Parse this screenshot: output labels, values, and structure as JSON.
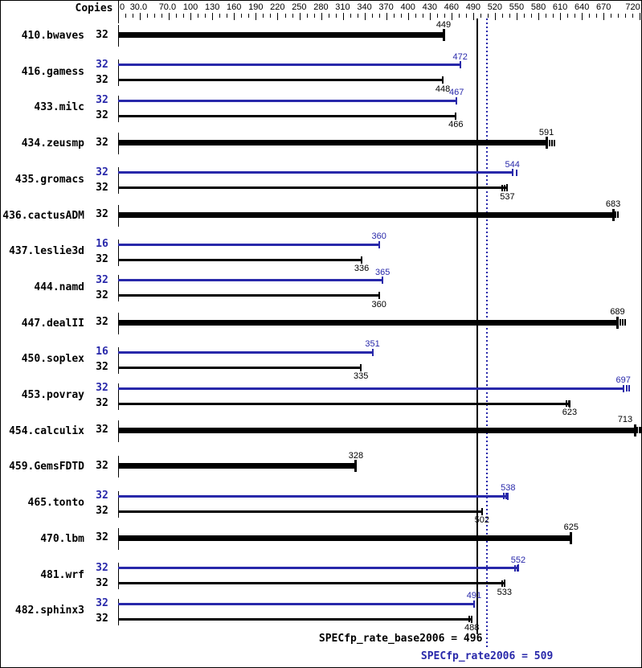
{
  "chart_data": {
    "type": "bar",
    "orientation": "horizontal",
    "copies_header": "Copies",
    "axis": {
      "min": 0,
      "max": 720,
      "minor_step": 10,
      "tick_labels": [
        "0",
        "30.0",
        "70.0",
        "100",
        "130",
        "160",
        "190",
        "220",
        "250",
        "280",
        "310",
        "340",
        "370",
        "400",
        "430",
        "460",
        "490",
        "520",
        "550",
        "580",
        "610",
        "640",
        "670",
        "720"
      ],
      "tick_values": [
        0,
        30,
        70,
        100,
        130,
        160,
        190,
        220,
        250,
        280,
        310,
        340,
        370,
        400,
        430,
        460,
        490,
        520,
        550,
        580,
        610,
        640,
        670,
        720
      ]
    },
    "colors": {
      "peak": "#2828aa",
      "base": "#000000"
    },
    "benchmarks": [
      {
        "name": "410.bwaves",
        "bars": [
          {
            "series": "base",
            "copies": "32",
            "value": 449,
            "bold": true,
            "marks": []
          }
        ]
      },
      {
        "name": "416.gamess",
        "bars": [
          {
            "series": "peak",
            "copies": "32",
            "value": 472,
            "marks": []
          },
          {
            "series": "base",
            "copies": "32",
            "value": 448,
            "marks": []
          }
        ]
      },
      {
        "name": "433.milc",
        "bars": [
          {
            "series": "peak",
            "copies": "32",
            "value": 467,
            "marks": []
          },
          {
            "series": "base",
            "copies": "32",
            "value": 466,
            "marks": []
          }
        ]
      },
      {
        "name": "434.zeusmp",
        "bars": [
          {
            "series": "base",
            "copies": "32",
            "value": 591,
            "bold": true,
            "marks": [
              3,
              6,
              9
            ]
          }
        ]
      },
      {
        "name": "435.gromacs",
        "bars": [
          {
            "series": "peak",
            "copies": "32",
            "value": 544,
            "marks": [
              4
            ]
          },
          {
            "series": "base",
            "copies": "32",
            "value": 537,
            "marks": [
              -7,
              -4
            ]
          }
        ]
      },
      {
        "name": "436.cactusADM",
        "bars": [
          {
            "series": "base",
            "copies": "32",
            "value": 683,
            "bold": true,
            "marks": [
              2,
              5
            ]
          }
        ]
      },
      {
        "name": "437.leslie3d",
        "bars": [
          {
            "series": "peak",
            "copies": "16",
            "value": 360,
            "marks": []
          },
          {
            "series": "base",
            "copies": "32",
            "value": 336,
            "marks": []
          }
        ]
      },
      {
        "name": "444.namd",
        "bars": [
          {
            "series": "peak",
            "copies": "32",
            "value": 365,
            "marks": []
          },
          {
            "series": "base",
            "copies": "32",
            "value": 360,
            "marks": []
          }
        ]
      },
      {
        "name": "447.dealII",
        "bars": [
          {
            "series": "base",
            "copies": "32",
            "value": 689,
            "bold": true,
            "marks": [
              2,
              5,
              8
            ]
          }
        ]
      },
      {
        "name": "450.soplex",
        "bars": [
          {
            "series": "peak",
            "copies": "16",
            "value": 351,
            "marks": []
          },
          {
            "series": "base",
            "copies": "32",
            "value": 335,
            "marks": []
          }
        ]
      },
      {
        "name": "453.povray",
        "bars": [
          {
            "series": "peak",
            "copies": "32",
            "value": 697,
            "marks": [
              3,
              6
            ]
          },
          {
            "series": "base",
            "copies": "32",
            "value": 623,
            "marks": [
              -5,
              -2
            ]
          }
        ]
      },
      {
        "name": "454.calculix",
        "bars": [
          {
            "series": "base",
            "copies": "32",
            "value": 713,
            "bold": true,
            "marks": [
              2,
              5,
              8
            ]
          }
        ]
      },
      {
        "name": "459.GemsFDTD",
        "bars": [
          {
            "series": "base",
            "copies": "32",
            "value": 328,
            "bold": true,
            "marks": []
          }
        ]
      },
      {
        "name": "465.tonto",
        "bars": [
          {
            "series": "peak",
            "copies": "32",
            "value": 538,
            "marks": [
              -6,
              -3
            ]
          },
          {
            "series": "base",
            "copies": "32",
            "value": 502,
            "marks": []
          }
        ]
      },
      {
        "name": "470.lbm",
        "bars": [
          {
            "series": "base",
            "copies": "32",
            "value": 625,
            "bold": true,
            "marks": []
          }
        ]
      },
      {
        "name": "481.wrf",
        "bars": [
          {
            "series": "peak",
            "copies": "32",
            "value": 552,
            "marks": [
              -5,
              -2
            ]
          },
          {
            "series": "base",
            "copies": "32",
            "value": 533,
            "marks": [
              -4,
              -1
            ]
          }
        ]
      },
      {
        "name": "482.sphinx3",
        "bars": [
          {
            "series": "peak",
            "copies": "32",
            "value": 491,
            "marks": []
          },
          {
            "series": "base",
            "copies": "32",
            "value": 488,
            "marks": [
              -4,
              -1
            ]
          }
        ]
      }
    ],
    "summary": {
      "base": {
        "metric": "SPECfp_rate_base2006",
        "value": 496,
        "text": "SPECfp_rate_base2006 = 496"
      },
      "peak": {
        "metric": "SPECfp_rate2006",
        "value": 509,
        "text": "SPECfp_rate2006 = 509"
      }
    }
  }
}
